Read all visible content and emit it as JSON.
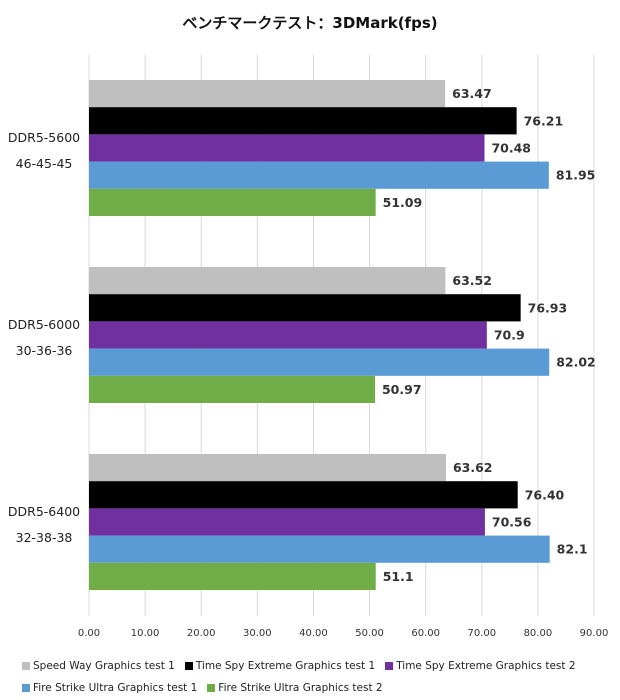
{
  "chart_data": {
    "type": "bar",
    "orientation": "horizontal",
    "title": "ベンチマークテスト：3DMark(fps)",
    "categories": [
      [
        "DDR5-5600",
        "46-45-45"
      ],
      [
        "DDR5-6000",
        "30-36-36"
      ],
      [
        "DDR5-6400",
        "32-38-38"
      ]
    ],
    "series": [
      {
        "name": "Speed Way Graphics test 1",
        "color": "#bfbfbf",
        "values": [
          63.47,
          63.52,
          63.62
        ],
        "labels": [
          "63.47",
          "63.52",
          "63.62"
        ]
      },
      {
        "name": "Time Spy Extreme Graphics test 1",
        "color": "#000000",
        "values": [
          76.21,
          76.93,
          76.4
        ],
        "labels": [
          "76.21",
          "76.93",
          "76.40"
        ]
      },
      {
        "name": "Time Spy Extreme Graphics test 2",
        "color": "#7030a0",
        "values": [
          70.48,
          70.9,
          70.56
        ],
        "labels": [
          "70.48",
          "70.9",
          "70.56"
        ]
      },
      {
        "name": "Fire Strike Ultra Graphics test 1",
        "color": "#5b9bd5",
        "values": [
          81.95,
          82.02,
          82.1
        ],
        "labels": [
          "81.95",
          "82.02",
          "82.1"
        ]
      },
      {
        "name": "Fire Strike Ultra Graphics test 2",
        "color": "#70ad47",
        "values": [
          51.09,
          50.97,
          51.1
        ],
        "labels": [
          "51.09",
          "50.97",
          "51.1"
        ]
      }
    ],
    "xlim": [
      0,
      90
    ],
    "xticks": [
      "0.00",
      "10.00",
      "20.00",
      "30.00",
      "40.00",
      "50.00",
      "60.00",
      "70.00",
      "80.00",
      "90.00"
    ],
    "xtick_values": [
      0,
      10,
      20,
      30,
      40,
      50,
      60,
      70,
      80,
      90
    ],
    "grid": true,
    "legend_position": "bottom"
  }
}
